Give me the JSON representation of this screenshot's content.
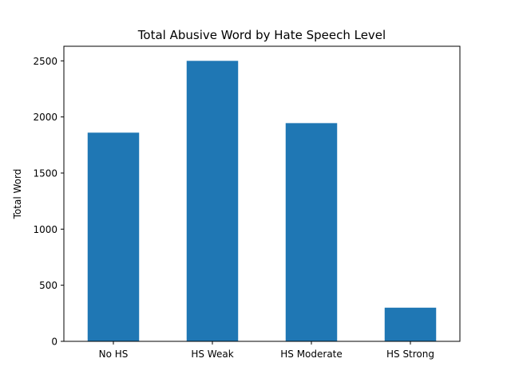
{
  "chart_data": {
    "type": "bar",
    "title": "Total Abusive Word by Hate Speech Level",
    "xlabel": "",
    "ylabel": "Total Word",
    "categories": [
      "No HS",
      "HS Weak",
      "HS Moderate",
      "HS Strong"
    ],
    "values": [
      1860,
      2500,
      1945,
      300
    ],
    "ylim": [
      0,
      2630
    ],
    "yticks": [
      0,
      500,
      1000,
      1500,
      2000,
      2500
    ],
    "bar_color": "#1f77b4",
    "grid": false,
    "legend": "none"
  }
}
